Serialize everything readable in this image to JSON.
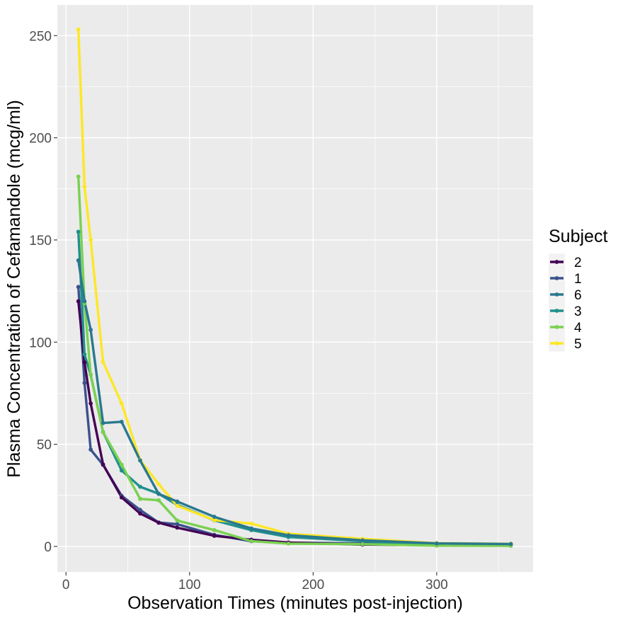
{
  "chart_data": {
    "type": "line",
    "xlabel": "Observation Times (minutes post-injection)",
    "ylabel": "Plasma Concentration of Cefamandole (mcg/ml)",
    "xlim": [
      -7,
      378
    ],
    "ylim": [
      -12.5,
      265
    ],
    "x_ticks": [
      0,
      100,
      200,
      300
    ],
    "y_ticks": [
      0,
      50,
      100,
      150,
      200,
      250
    ],
    "grid": true,
    "legend": {
      "title": "Subject",
      "placement": "right",
      "order": [
        "2",
        "1",
        "6",
        "3",
        "4",
        "5"
      ]
    },
    "x": [
      10,
      15,
      20,
      30,
      45,
      60,
      75,
      90,
      120,
      150,
      180,
      240,
      300,
      360
    ],
    "series": [
      {
        "name": "1",
        "color": "#3b528b",
        "values": [
          127,
          80,
          47.4,
          39.9,
          24.8,
          17.9,
          11.7,
          10.9,
          5.7,
          2.55,
          1.84,
          1.5,
          0.7,
          0.8
        ]
      },
      {
        "name": "2",
        "color": "#440154",
        "values": [
          120,
          90.1,
          70,
          40.1,
          24,
          16.1,
          11.6,
          9.2,
          5.2,
          3.3,
          1.9,
          0.9,
          0.6,
          0.5
        ]
      },
      {
        "name": "3",
        "color": "#21908c",
        "values": [
          154,
          94,
          84,
          56,
          37.2,
          29.2,
          25.8,
          20.3,
          12.8,
          8,
          4.6,
          2.6,
          0.6,
          0.6
        ]
      },
      {
        "name": "4",
        "color": "#7ad151",
        "values": [
          181,
          119,
          84,
          56,
          40,
          23.3,
          22.6,
          12.7,
          8,
          2.6,
          1.4,
          1.1,
          0.4,
          0.3
        ]
      },
      {
        "name": "5",
        "color": "#fde725",
        "values": [
          253,
          176,
          150,
          90.3,
          70,
          42.3,
          30.5,
          19.9,
          12.9,
          11.2,
          6.2,
          3.7,
          1.6,
          1.3
        ]
      },
      {
        "name": "6",
        "color": "#2a788e",
        "values": [
          140,
          120,
          106,
          60.4,
          61,
          42.1,
          25.7,
          22,
          14.5,
          8.8,
          5.5,
          3,
          1.5,
          1.2
        ]
      }
    ]
  }
}
